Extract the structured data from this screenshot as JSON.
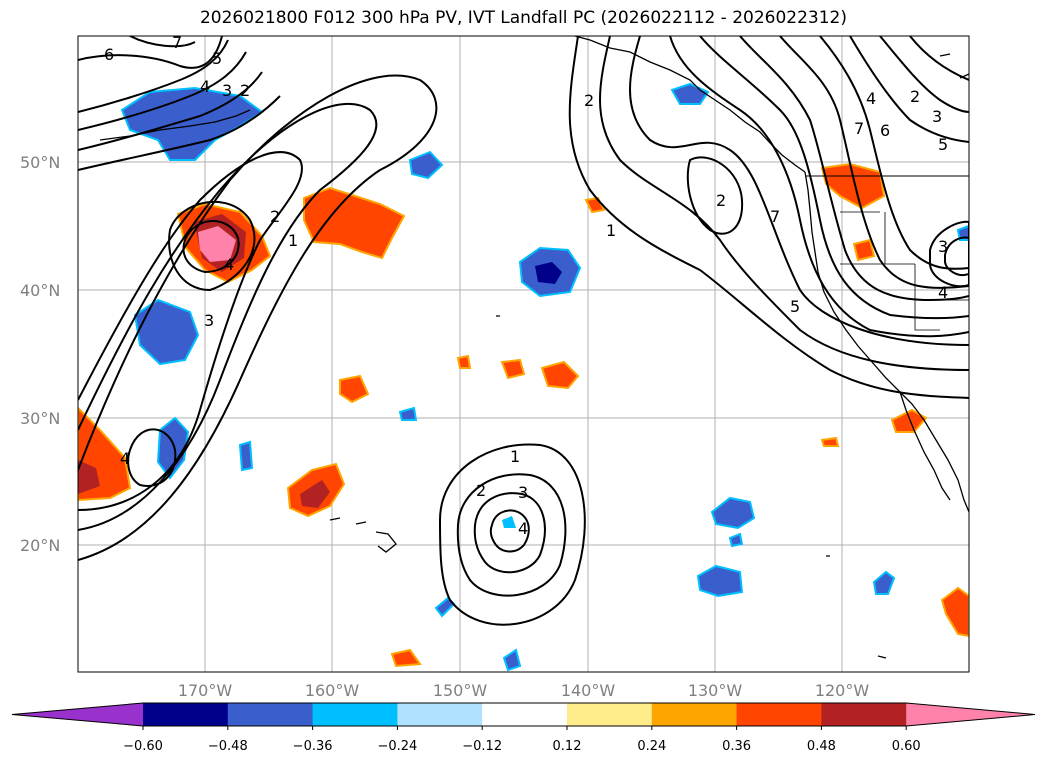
{
  "title": "2026021800 F012 300 hPa PV, IVT Landfall PC (2026022112 - 2026022312)",
  "lat_labels": [
    "50°N",
    "40°N",
    "30°N",
    "20°N"
  ],
  "lon_labels": [
    "170°W",
    "160°W",
    "150°W",
    "140°W",
    "130°W",
    "120°W"
  ],
  "colorbar": {
    "colors": [
      "#9932cc",
      "#00008b",
      "#3a5fcd",
      "#00bfff",
      "#b0e2ff",
      "#ffffff",
      "#ffec8b",
      "#ffa500",
      "#ff4500",
      "#b22222",
      "#ff82ab"
    ],
    "ticks": [
      "−0.60",
      "−0.48",
      "−0.36",
      "−0.24",
      "−0.12",
      "0.12",
      "0.24",
      "0.36",
      "0.48",
      "0.60"
    ]
  },
  "contour_labels": {
    "c6": "6",
    "c7": "7",
    "c5": "5",
    "c4a": "4",
    "c3a": "3",
    "c2a": "2",
    "c2b": "2",
    "c1a": "1",
    "c4b": "4",
    "c3b": "3",
    "c4c": "4",
    "c2c": "2",
    "c1b": "1",
    "c2d": "2",
    "c7b": "7",
    "c4d": "4",
    "c2e": "2",
    "c3c": "3",
    "c6b": "6",
    "c7c": "7",
    "c5b": "5",
    "c3d": "3",
    "c4e": "4",
    "c5c": "5",
    "c1c": "1",
    "c2f": "2",
    "c3e": "3",
    "c4f": "4"
  }
}
